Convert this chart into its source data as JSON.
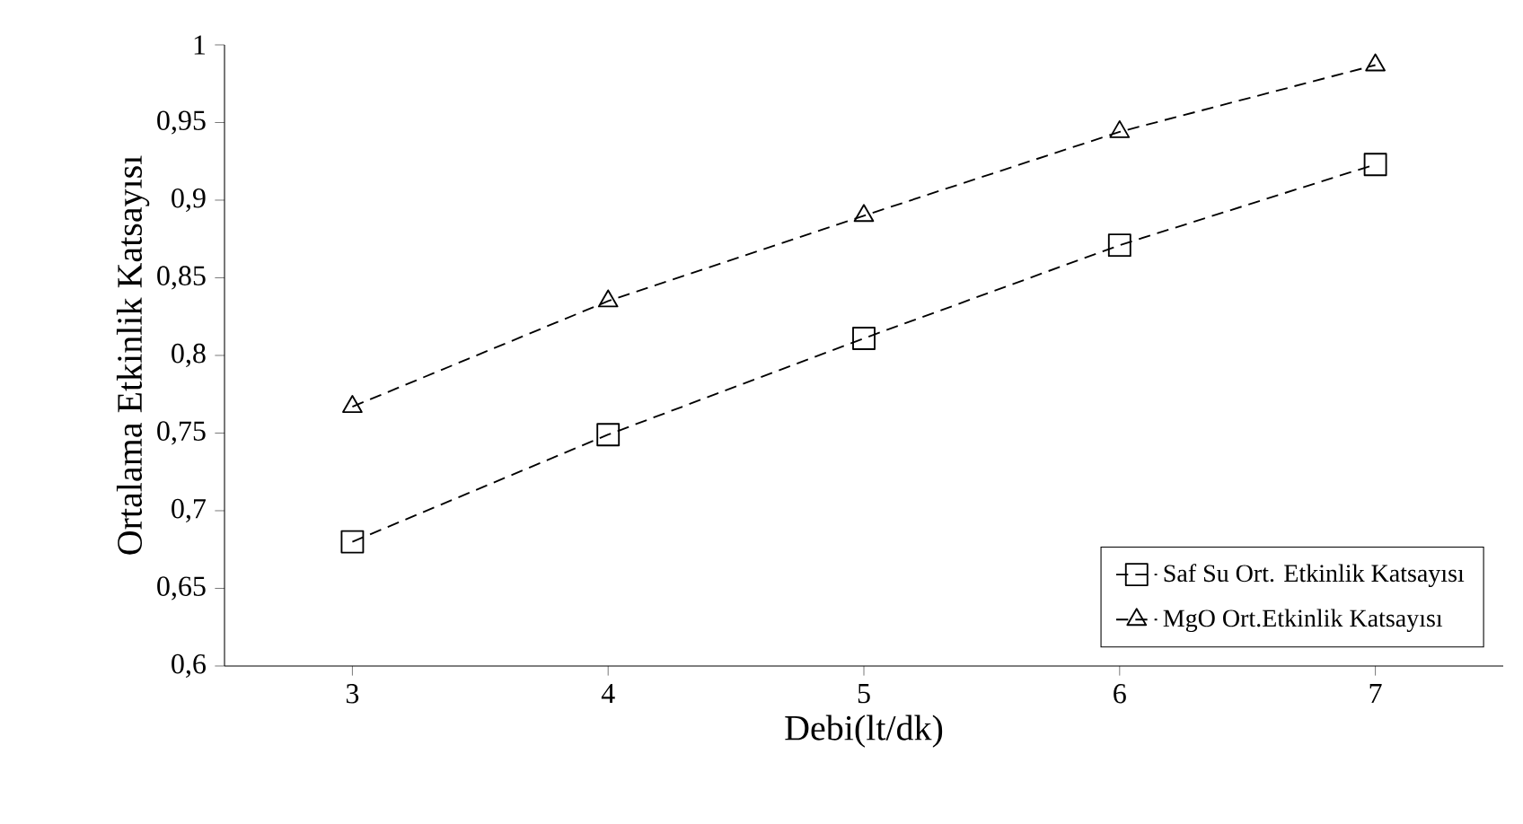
{
  "chart_data": {
    "type": "line",
    "xlabel": "Debi(lt/dk)",
    "ylabel": "Ortalama Etkinlik Katsayısı",
    "x": [
      3,
      4,
      5,
      6,
      7
    ],
    "series": [
      {
        "name": "Saf Su  Ort. Etkinlik Katsayısı",
        "color": "#000000",
        "marker": "square",
        "values": [
          0.68,
          0.749,
          0.811,
          0.871,
          0.923
        ]
      },
      {
        "name": "MgO Ort.Etkinlik Katsayısı",
        "color": "#000000",
        "marker": "triangle",
        "values": [
          0.767,
          0.835,
          0.89,
          0.944,
          0.987
        ]
      }
    ],
    "line_style": "dashed",
    "xlim": [
      2.5,
      7.5
    ],
    "xticks": [
      3,
      4,
      5,
      6,
      7
    ],
    "ylim": [
      0.6,
      1
    ],
    "yticks": [
      {
        "value": 0.6,
        "label": "0,6"
      },
      {
        "value": 0.65,
        "label": "0,65"
      },
      {
        "value": 0.7,
        "label": "0,7"
      },
      {
        "value": 0.75,
        "label": "0,75"
      },
      {
        "value": 0.8,
        "label": "0,8"
      },
      {
        "value": 0.85,
        "label": "0,85"
      },
      {
        "value": 0.9,
        "label": "0,9"
      },
      {
        "value": 0.95,
        "label": "0,95"
      },
      {
        "value": 1,
        "label": "1"
      }
    ],
    "grid": false,
    "legend": "bottom right"
  }
}
